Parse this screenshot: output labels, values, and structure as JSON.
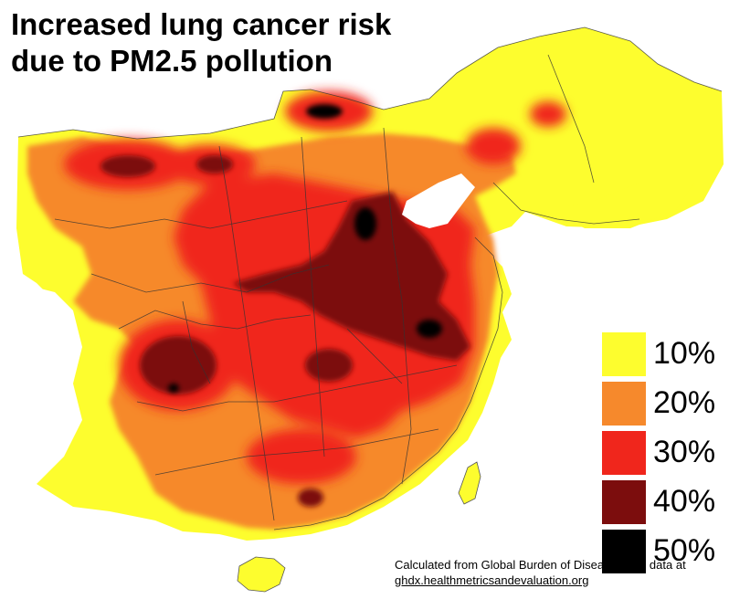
{
  "title": {
    "line1": "Increased lung cancer risk",
    "line2": "due to PM2.5 pollution"
  },
  "legend": [
    {
      "label": "10%",
      "color": "#fdfd2e"
    },
    {
      "label": "20%",
      "color": "#f6892c"
    },
    {
      "label": "30%",
      "color": "#f0261c"
    },
    {
      "label": "40%",
      "color": "#7c0d0d"
    },
    {
      "label": "50%",
      "color": "#000000"
    }
  ],
  "source": {
    "text": "Calculated from Global Burden of Disease 2010 data at",
    "link": "ghdx.healthmetricsandevaluation.org"
  },
  "map": {
    "region": "Eastern China",
    "layer": "increased lung cancer risk from PM2.5"
  }
}
